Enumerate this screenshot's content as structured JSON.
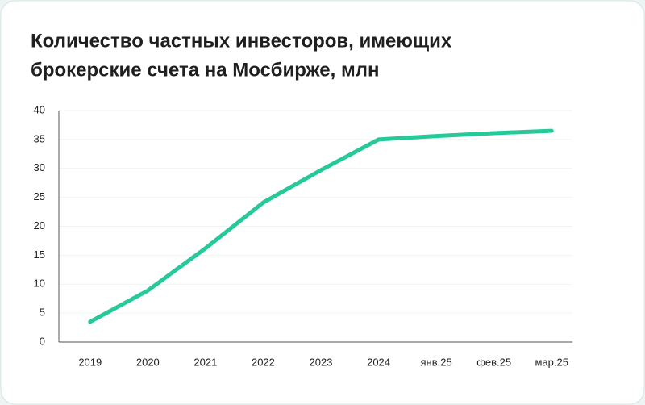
{
  "chart_data": {
    "type": "line",
    "title": [
      "Количество частных инвесторов, имеющих",
      "брокерские счета на Мосбирже, млн"
    ],
    "categories": [
      "2019",
      "2020",
      "2021",
      "2022",
      "2023",
      "2024",
      "янв.25",
      "фев.25",
      "мар.25"
    ],
    "values": [
      3.5,
      8.9,
      16.2,
      24.1,
      29.7,
      35.0,
      35.6,
      36.1,
      36.5
    ],
    "color": "#25c99a",
    "ylim": [
      0,
      40
    ],
    "yticks": [
      0,
      5,
      10,
      15,
      20,
      25,
      30,
      35,
      40
    ],
    "grid": true
  }
}
